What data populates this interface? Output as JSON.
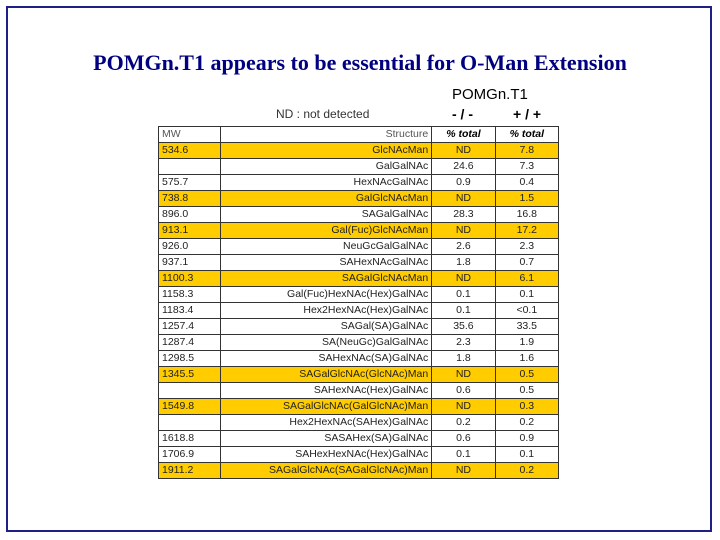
{
  "slide": {
    "title": "POMGn.T1 appears to be essential for O-Man Extension",
    "gene_label": "POMGn.T1",
    "genotype_ko": "- / -",
    "genotype_wt": "+ / +",
    "nd_legend": "ND : not detected"
  },
  "table": {
    "headers": [
      "MW",
      "Structure",
      "% total",
      "% total"
    ],
    "highlight_color": "#ffcc00",
    "rows": [
      {
        "mw": "534.6",
        "structure": "GlcNAcMan",
        "ko": "ND",
        "wt": "7.8",
        "highlight": true
      },
      {
        "mw": "",
        "structure": "GalGalNAc",
        "ko": "24.6",
        "wt": "7.3",
        "highlight": false
      },
      {
        "mw": "575.7",
        "structure": "HexNAcGalNAc",
        "ko": "0.9",
        "wt": "0.4",
        "highlight": false
      },
      {
        "mw": "738.8",
        "structure": "GalGlcNAcMan",
        "ko": "ND",
        "wt": "1.5",
        "highlight": true
      },
      {
        "mw": "896.0",
        "structure": "SAGalGalNAc",
        "ko": "28.3",
        "wt": "16.8",
        "highlight": false
      },
      {
        "mw": "913.1",
        "structure": "Gal(Fuc)GlcNAcMan",
        "ko": "ND",
        "wt": "17.2",
        "highlight": true
      },
      {
        "mw": "926.0",
        "structure": "NeuGcGalGalNAc",
        "ko": "2.6",
        "wt": "2.3",
        "highlight": false
      },
      {
        "mw": "937.1",
        "structure": "SAHexNAcGalNAc",
        "ko": "1.8",
        "wt": "0.7",
        "highlight": false
      },
      {
        "mw": "1100.3",
        "structure": "SAGalGlcNAcMan",
        "ko": "ND",
        "wt": "6.1",
        "highlight": true
      },
      {
        "mw": "1158.3",
        "structure": "Gal(Fuc)HexNAc(Hex)GalNAc",
        "ko": "0.1",
        "wt": "0.1",
        "highlight": false
      },
      {
        "mw": "1183.4",
        "structure": "Hex2HexNAc(Hex)GalNAc",
        "ko": "0.1",
        "wt": "<0.1",
        "highlight": false
      },
      {
        "mw": "1257.4",
        "structure": "SAGal(SA)GalNAc",
        "ko": "35.6",
        "wt": "33.5",
        "highlight": false
      },
      {
        "mw": "1287.4",
        "structure": "SA(NeuGc)GalGalNAc",
        "ko": "2.3",
        "wt": "1.9",
        "highlight": false
      },
      {
        "mw": "1298.5",
        "structure": "SAHexNAc(SA)GalNAc",
        "ko": "1.8",
        "wt": "1.6",
        "highlight": false
      },
      {
        "mw": "1345.5",
        "structure": "SAGalGlcNAc(GlcNAc)Man",
        "ko": "ND",
        "wt": "0.5",
        "highlight": true
      },
      {
        "mw": "",
        "structure": "SAHexNAc(Hex)GalNAc",
        "ko": "0.6",
        "wt": "0.5",
        "highlight": false
      },
      {
        "mw": "1549.8",
        "structure": "SAGalGlcNAc(GalGlcNAc)Man",
        "ko": "ND",
        "wt": "0.3",
        "highlight": true
      },
      {
        "mw": "",
        "structure": "Hex2HexNAc(SAHex)GalNAc",
        "ko": "0.2",
        "wt": "0.2",
        "highlight": false
      },
      {
        "mw": "1618.8",
        "structure": "SASAHex(SA)GalNAc",
        "ko": "0.6",
        "wt": "0.9",
        "highlight": false
      },
      {
        "mw": "1706.9",
        "structure": "SAHexHexNAc(Hex)GalNAc",
        "ko": "0.1",
        "wt": "0.1",
        "highlight": false
      },
      {
        "mw": "1911.2",
        "structure": "SAGalGlcNAc(SAGalGlcNAc)Man",
        "ko": "ND",
        "wt": "0.2",
        "highlight": true
      }
    ]
  }
}
